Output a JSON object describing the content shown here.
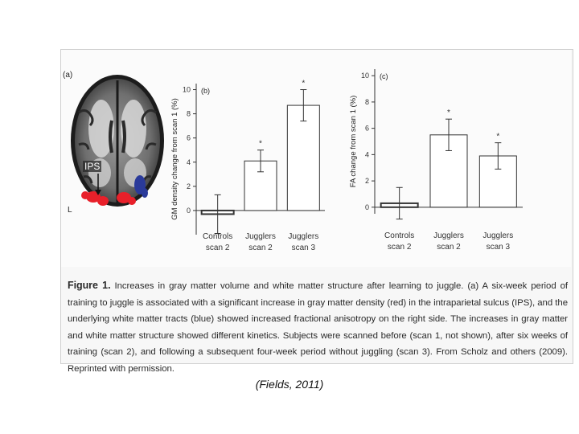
{
  "panel_a": {
    "label": "(a)",
    "ips_label": "IPS",
    "l_label": "L"
  },
  "chart_data": [
    {
      "type": "bar",
      "panel_label": "(b)",
      "ylabel": "GM density change from scan 1 (%)",
      "categories": [
        "Controls scan 2",
        "Jugglers scan 2",
        "Jugglers scan 3"
      ],
      "category_lines": [
        [
          "Controls",
          "scan 2"
        ],
        [
          "Jugglers",
          "scan 2"
        ],
        [
          "Jugglers",
          "scan 3"
        ]
      ],
      "values": [
        -0.3,
        4.1,
        8.7
      ],
      "error": [
        1.6,
        0.9,
        1.3
      ],
      "significance": [
        "",
        "*",
        "*"
      ],
      "yticks": [
        0,
        2,
        4,
        6,
        8,
        10
      ],
      "ylim": [
        -2,
        10.5
      ]
    },
    {
      "type": "bar",
      "panel_label": "(c)",
      "ylabel": "FA change from scan 1 (%)",
      "categories": [
        "Controls scan 2",
        "Jugglers scan 2",
        "Jugglers scan 3"
      ],
      "category_lines": [
        [
          "Controls",
          "scan 2"
        ],
        [
          "Jugglers",
          "scan 2"
        ],
        [
          "Jugglers",
          "scan 3"
        ]
      ],
      "values": [
        0.3,
        5.5,
        3.9
      ],
      "error": [
        1.2,
        1.2,
        1.0
      ],
      "significance": [
        "",
        "*",
        "*"
      ],
      "yticks": [
        0,
        2,
        4,
        6,
        8,
        10
      ],
      "ylim": [
        -0.5,
        10.5
      ]
    }
  ],
  "caption": {
    "label": "Figure 1.",
    "text": "Increases in gray matter volume and white matter structure after learning to juggle. (a) A six-week period of training to juggle is associated with a significant increase in gray matter density (red) in the intraparietal sulcus (IPS), and the underlying white matter tracts (blue) showed increased fractional anisotropy on the right side. The increases in gray matter and white matter structure showed different kinetics. Subjects were scanned before (scan 1, not shown), after six weeks of training (scan 2), and following a subsequent four-week period without juggling (scan 3). From Scholz and others (2009). Reprinted with permission."
  },
  "citation": "(Fields, 2011)",
  "colors": {
    "gray_matter_highlight": "#e8202a",
    "white_matter_highlight": "#2a3a9a",
    "bar_fill": "#ffffff",
    "axis": "#333333"
  }
}
